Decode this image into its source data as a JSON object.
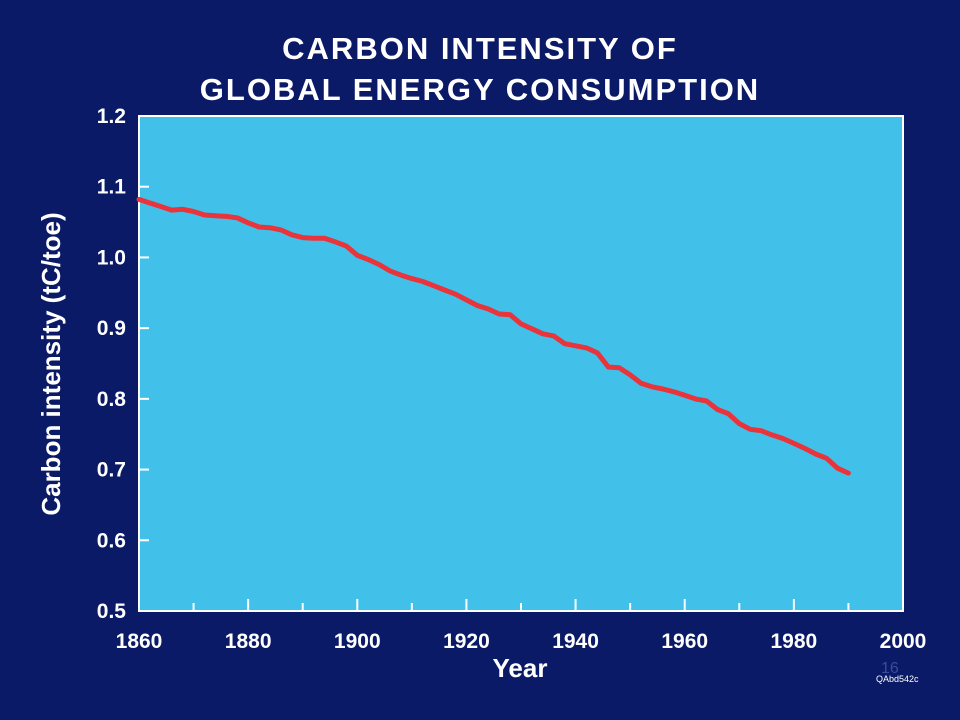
{
  "slide": {
    "page_number": "16",
    "code": "QAbd542c"
  },
  "colors": {
    "background": "#0b1a66",
    "plot_area": "#41c1e9",
    "line": "#e8343a",
    "text": "#ffffff"
  },
  "chart_data": {
    "type": "line",
    "title_lines": [
      "CARBON INTENSITY OF",
      "GLOBAL ENERGY CONSUMPTION"
    ],
    "xlabel": "Year",
    "ylabel": "Carbon intensity (tC/toe)",
    "xlim": [
      1860,
      2000
    ],
    "ylim": [
      0.5,
      1.2
    ],
    "x_ticks": [
      1860,
      1880,
      1900,
      1920,
      1940,
      1960,
      1980,
      2000
    ],
    "x_tick_labels": [
      "1860",
      "1880",
      "1900",
      "1920",
      "1940",
      "1960",
      "1980",
      "2000"
    ],
    "y_ticks": [
      0.5,
      0.6,
      0.7,
      0.8,
      0.9,
      1.0,
      1.1,
      1.2
    ],
    "y_tick_labels": [
      "0.5",
      "0.6",
      "0.7",
      "0.8",
      "0.9",
      "1.0",
      "1.1",
      "1.2"
    ],
    "grid": false,
    "series": [
      {
        "color": "#e8343a",
        "x": [
          1860,
          1862,
          1864,
          1866,
          1868,
          1870,
          1872,
          1874,
          1876,
          1878,
          1880,
          1882,
          1884,
          1886,
          1888,
          1890,
          1892,
          1894,
          1896,
          1898,
          1900,
          1902,
          1904,
          1906,
          1908,
          1910,
          1912,
          1914,
          1916,
          1918,
          1920,
          1922,
          1924,
          1926,
          1928,
          1930,
          1932,
          1934,
          1936,
          1938,
          1940,
          1942,
          1944,
          1946,
          1948,
          1950,
          1952,
          1954,
          1956,
          1958,
          1960,
          1962,
          1964,
          1966,
          1968,
          1970,
          1972,
          1974,
          1976,
          1978,
          1980,
          1982,
          1984,
          1986,
          1988,
          1990
        ],
        "values": [
          1.082,
          1.077,
          1.072,
          1.067,
          1.068,
          1.065,
          1.06,
          1.059,
          1.058,
          1.056,
          1.049,
          1.043,
          1.042,
          1.039,
          1.032,
          1.028,
          1.027,
          1.027,
          1.022,
          1.016,
          1.003,
          0.997,
          0.99,
          0.981,
          0.975,
          0.97,
          0.966,
          0.96,
          0.954,
          0.948,
          0.94,
          0.932,
          0.927,
          0.92,
          0.919,
          0.906,
          0.899,
          0.892,
          0.889,
          0.878,
          0.875,
          0.872,
          0.865,
          0.845,
          0.844,
          0.834,
          0.822,
          0.817,
          0.814,
          0.81,
          0.805,
          0.8,
          0.797,
          0.785,
          0.779,
          0.765,
          0.757,
          0.755,
          0.749,
          0.744,
          0.737,
          0.73,
          0.722,
          0.716,
          0.702,
          0.695
        ]
      }
    ]
  }
}
